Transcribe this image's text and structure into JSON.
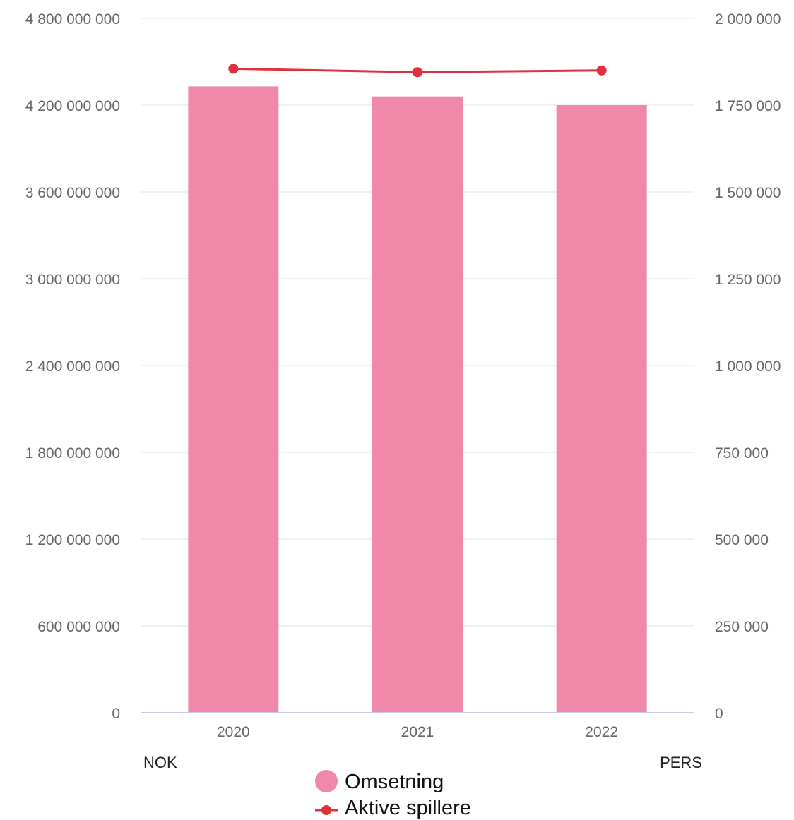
{
  "chart_data": {
    "type": "bar",
    "categories": [
      "2020",
      "2021",
      "2022"
    ],
    "left_axis": {
      "unit": "NOK",
      "range": [
        0,
        4800000000
      ],
      "ticks": [
        0,
        600000000,
        1200000000,
        1800000000,
        2400000000,
        3000000000,
        3600000000,
        4200000000,
        4800000000
      ],
      "tick_labels": [
        "0",
        "600 000 000",
        "1 200 000 000",
        "1 800 000 000",
        "2 400 000 000",
        "3 000 000 000",
        "3 600 000 000",
        "4 200 000 000",
        "4 800 000 000"
      ]
    },
    "right_axis": {
      "unit": "PERS",
      "range": [
        0,
        2000000
      ],
      "ticks": [
        0,
        250000,
        500000,
        750000,
        1000000,
        1250000,
        1500000,
        1750000,
        2000000
      ],
      "tick_labels": [
        "0",
        "250 000",
        "500 000",
        "750 000",
        "1 000 000",
        "1 250 000",
        "1 500 000",
        "1 750 000",
        "2 000 000"
      ]
    },
    "series": [
      {
        "name": "Omsetning",
        "type": "bar",
        "axis": "left",
        "color": "#f088aa",
        "values": [
          4330000000,
          4260000000,
          4200000000
        ]
      },
      {
        "name": "Aktive spillere",
        "type": "line",
        "axis": "right",
        "color": "#e0303c",
        "values": [
          1855000,
          1845000,
          1850000
        ]
      }
    ],
    "grid": true,
    "legend_position": "bottom-center"
  }
}
